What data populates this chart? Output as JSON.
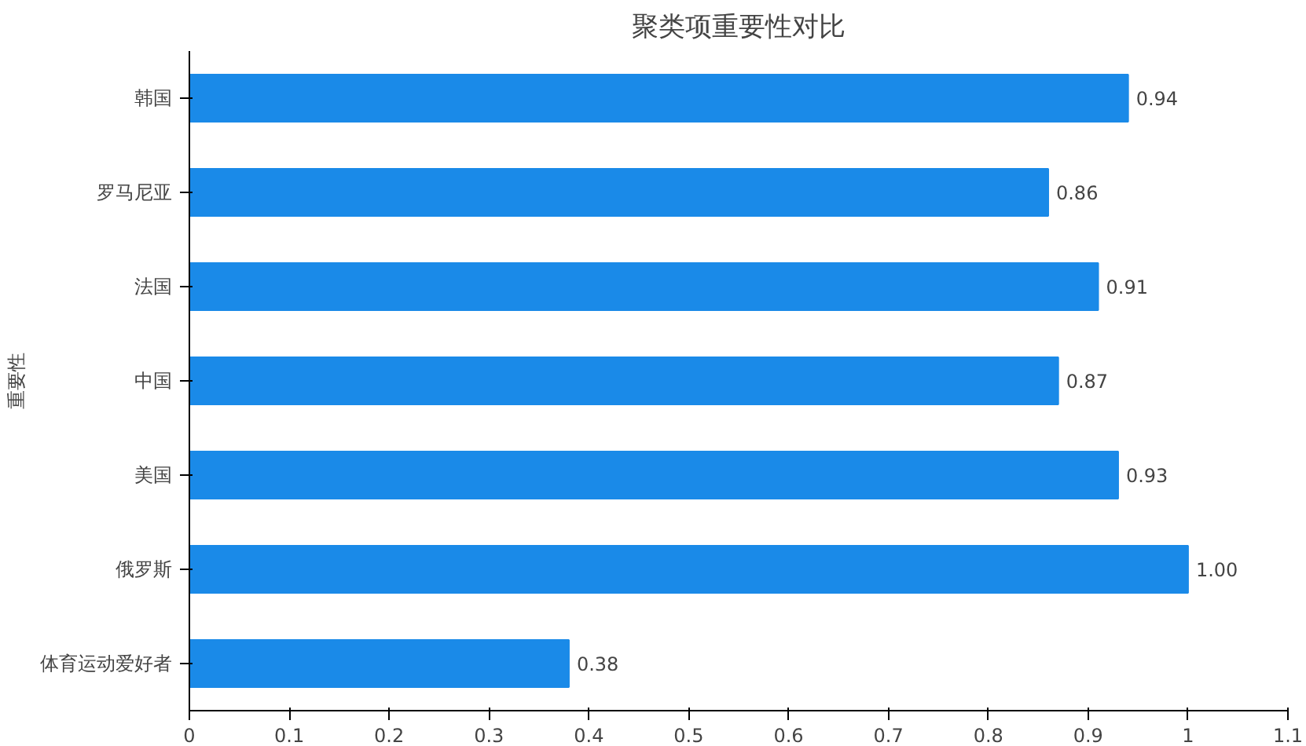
{
  "chart_data": {
    "type": "bar",
    "orientation": "horizontal",
    "title": "聚类项重要性对比",
    "ylabel": "重要性",
    "categories": [
      "韩国",
      "罗马尼亚",
      "法国",
      "中国",
      "美国",
      "俄罗斯",
      "体育运动爱好者"
    ],
    "values": [
      0.94,
      0.86,
      0.91,
      0.87,
      0.93,
      1.0,
      0.38
    ],
    "value_labels": [
      "0.94",
      "0.86",
      "0.91",
      "0.87",
      "0.93",
      "1.00",
      "0.38"
    ],
    "color": "#1a8ae8",
    "xlim": [
      0,
      1.1
    ],
    "xticks": [
      0,
      0.1,
      0.2,
      0.3,
      0.4,
      0.5,
      0.6,
      0.7,
      0.8,
      0.9,
      1,
      1.1
    ],
    "grid": false
  }
}
